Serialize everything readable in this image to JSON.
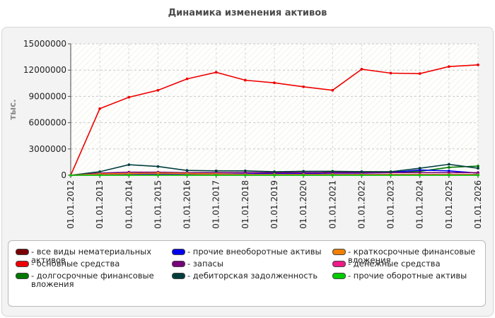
{
  "header": {
    "title": "Динамика изменения активов"
  },
  "chart_data": {
    "type": "line",
    "title": "Динамика изменения активов",
    "ylabel": "тыс.",
    "ylim": [
      0,
      15000000
    ],
    "yticks": [
      "0",
      "3000000",
      "6000000",
      "9000000",
      "12000000",
      "15000000"
    ],
    "ytick_values": [
      0,
      3000000,
      6000000,
      9000000,
      12000000,
      15000000
    ],
    "categories": [
      "01.01.2012",
      "01.01.2013",
      "01.01.2014",
      "01.01.2015",
      "01.01.2016",
      "01.01.2017",
      "01.01.2018",
      "01.01.2019",
      "01.01.2020",
      "01.01.2021",
      "01.01.2022",
      "01.01.2023",
      "01.01.2024",
      "01.01.2025",
      "01.01.2026"
    ],
    "grid": true,
    "legend_position": "bottom",
    "series": [
      {
        "name": "все виды нематериальных\nактивов",
        "color": "#7a0000",
        "values": [
          0,
          20000,
          20000,
          20000,
          20000,
          20000,
          20000,
          20000,
          20000,
          20000,
          20000,
          20000,
          20000,
          20000,
          20000
        ]
      },
      {
        "name": "основные средства",
        "color": "#ee0000",
        "values": [
          0,
          7600000,
          8900000,
          9700000,
          11000000,
          11750000,
          10850000,
          10550000,
          10100000,
          9700000,
          12100000,
          11650000,
          11600000,
          12400000,
          12600000
        ]
      },
      {
        "name": "долгосрочные финансовые\nвложения",
        "color": "#007700",
        "values": [
          0,
          80000,
          80000,
          80000,
          80000,
          80000,
          100000,
          100000,
          150000,
          400000,
          400000,
          400000,
          450000,
          900000,
          1050000
        ]
      },
      {
        "name": "прочие внеоборотные активы",
        "color": "#0000ee",
        "values": [
          0,
          100000,
          150000,
          150000,
          150000,
          150000,
          150000,
          200000,
          200000,
          250000,
          250000,
          300000,
          600000,
          500000,
          250000
        ]
      },
      {
        "name": "запасы",
        "color": "#77007a",
        "values": [
          0,
          250000,
          350000,
          350000,
          300000,
          300000,
          300000,
          300000,
          300000,
          300000,
          300000,
          300000,
          300000,
          300000,
          300000
        ]
      },
      {
        "name": "дебиторская задолженность",
        "color": "#003e3e",
        "values": [
          0,
          400000,
          1200000,
          1000000,
          550000,
          500000,
          500000,
          400000,
          450000,
          450000,
          400000,
          400000,
          800000,
          1250000,
          800000
        ]
      },
      {
        "name": "краткосрочные финансовые\nвложения",
        "color": "#f08000",
        "values": [
          0,
          150000,
          200000,
          250000,
          200000,
          150000,
          100000,
          100000,
          100000,
          100000,
          100000,
          100000,
          100000,
          100000,
          100000
        ]
      },
      {
        "name": "денежные средства",
        "color": "#ee1a8a",
        "values": [
          0,
          50000,
          50000,
          50000,
          50000,
          50000,
          50000,
          50000,
          50000,
          50000,
          50000,
          50000,
          50000,
          50000,
          50000
        ]
      },
      {
        "name": "прочие оборотные активы",
        "color": "#00cc00",
        "values": [
          0,
          10000,
          10000,
          10000,
          10000,
          10000,
          10000,
          10000,
          10000,
          10000,
          10000,
          10000,
          10000,
          10000,
          10000
        ]
      }
    ]
  }
}
